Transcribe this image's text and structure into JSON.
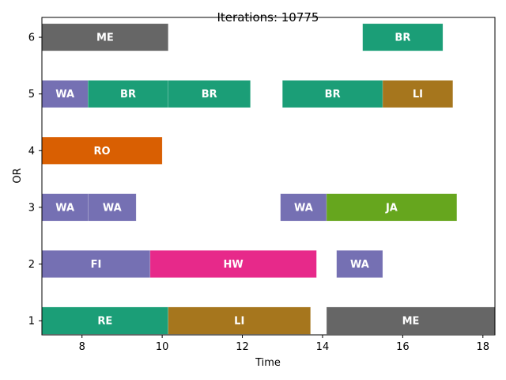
{
  "chart_data": {
    "type": "gantt",
    "title": "Iterations: 10775",
    "xlabel": "Time",
    "ylabel": "OR",
    "xlim": [
      7.0,
      18.3
    ],
    "ylim": [
      0.75,
      6.35
    ],
    "xticks": [
      8,
      10,
      12,
      14,
      16,
      18
    ],
    "yticks": [
      1,
      2,
      3,
      4,
      5,
      6
    ],
    "grid": false,
    "colors": {
      "ME": "#666666",
      "BR": "#1b9e77",
      "WA": "#7570b3",
      "RO": "#d95f02",
      "JA": "#66a61e",
      "FI": "#7570b3",
      "HW": "#e7298a",
      "RE": "#1b9e77",
      "LI": "#a6761d"
    },
    "tasks": [
      {
        "or": 6,
        "label": "ME",
        "start": 7.0,
        "end": 10.15
      },
      {
        "or": 6,
        "label": "BR",
        "start": 15.0,
        "end": 17.0
      },
      {
        "or": 5,
        "label": "WA",
        "start": 7.0,
        "end": 8.15
      },
      {
        "or": 5,
        "label": "BR",
        "start": 8.15,
        "end": 10.15
      },
      {
        "or": 5,
        "label": "BR",
        "start": 10.15,
        "end": 12.2
      },
      {
        "or": 5,
        "label": "BR",
        "start": 13.0,
        "end": 15.5
      },
      {
        "or": 5,
        "label": "LI",
        "start": 15.5,
        "end": 17.25
      },
      {
        "or": 4,
        "label": "RO",
        "start": 7.0,
        "end": 10.0
      },
      {
        "or": 3,
        "label": "WA",
        "start": 7.0,
        "end": 8.15
      },
      {
        "or": 3,
        "label": "WA",
        "start": 8.15,
        "end": 9.35
      },
      {
        "or": 3,
        "label": "WA",
        "start": 12.95,
        "end": 14.1
      },
      {
        "or": 3,
        "label": "JA",
        "start": 14.1,
        "end": 17.35
      },
      {
        "or": 2,
        "label": "FI",
        "start": 7.0,
        "end": 9.7
      },
      {
        "or": 2,
        "label": "HW",
        "start": 9.7,
        "end": 13.85
      },
      {
        "or": 2,
        "label": "WA",
        "start": 14.35,
        "end": 15.5
      },
      {
        "or": 1,
        "label": "RE",
        "start": 7.0,
        "end": 10.15
      },
      {
        "or": 1,
        "label": "LI",
        "start": 10.15,
        "end": 13.7
      },
      {
        "or": 1,
        "label": "ME",
        "start": 14.1,
        "end": 18.3
      }
    ]
  }
}
